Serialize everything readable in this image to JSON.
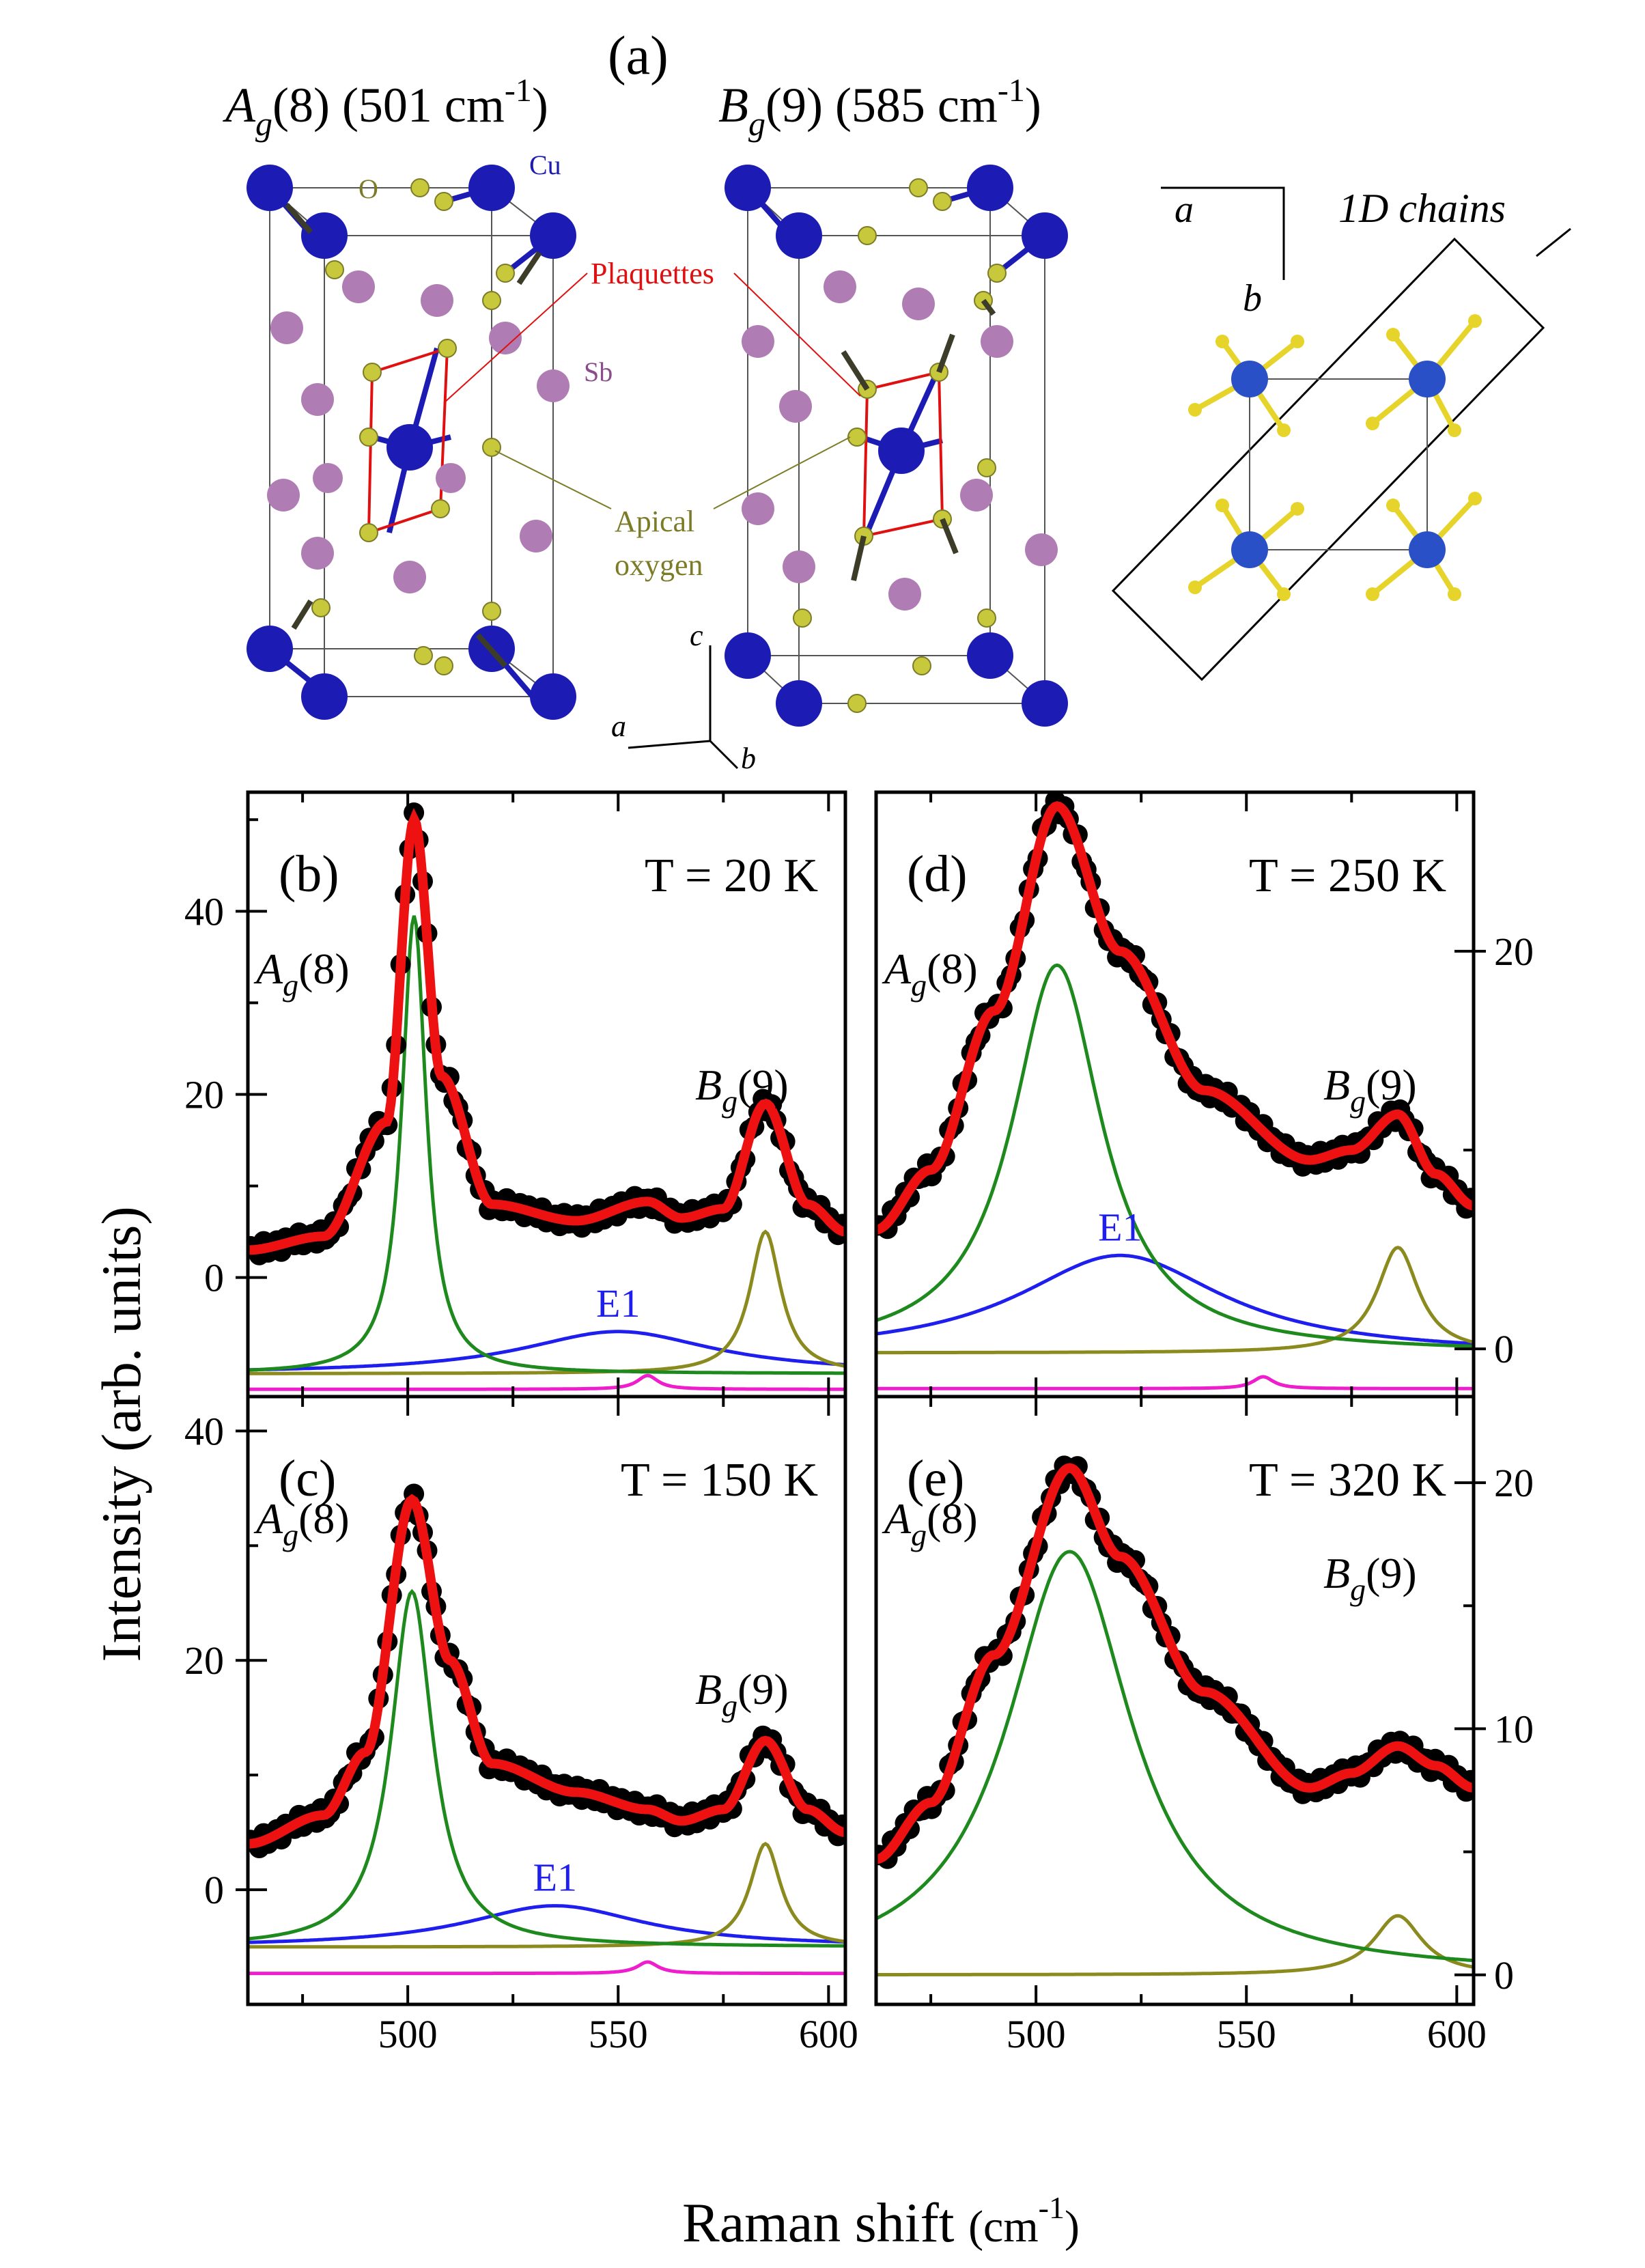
{
  "panel_a": {
    "label": "(a)",
    "mode1": {
      "name": "A",
      "sub": "g",
      "idx": "(8)",
      "freq": " (501 cm",
      "sup": "-1",
      "close": ")"
    },
    "mode2": {
      "name": "B",
      "sub": "g",
      "idx": "(9)",
      "freq": " (585 cm",
      "sup": "-1",
      "close": ")"
    },
    "atoms": {
      "cu": "Cu",
      "o": "O",
      "sb": "Sb"
    },
    "plaquettes": "Plaquettes",
    "apical1": "Apical",
    "apical2": "oxygen",
    "axis_a": "a",
    "axis_b": "b",
    "axis_c": "c",
    "chains": "1D chains",
    "colors": {
      "cu": "#1c1cb4",
      "o": "#c8c83c",
      "sb": "#b07cb4",
      "plaq": "#e01010",
      "apical": "#7c7c28"
    }
  },
  "figure": {
    "ylabel": "Intensity (arb. units)",
    "xlabel_main": "Raman shift ",
    "xlabel_unit": "(cm",
    "xlabel_sup": "-1",
    "xlabel_close": ")"
  },
  "chart_data": [
    {
      "type": "line",
      "panel": "(b)",
      "temperature": "T = 20 K",
      "x_range": [
        462,
        604
      ],
      "y_range": [
        -13,
        53
      ],
      "xticks": [
        "500",
        "550",
        "600"
      ],
      "yticks": [
        "0",
        "20",
        "40"
      ],
      "ytick_values": [
        0,
        20,
        40
      ],
      "labels": {
        "ag": "A",
        "ag_sub": "g",
        "ag_idx": "(8)",
        "bg": "B",
        "bg_sub": "g",
        "bg_idx": "(9)",
        "e1": "E1"
      },
      "colors": {
        "data": "#000000",
        "fit": "#ee1111",
        "ag": "#1e8a1e",
        "bg": "#8a8a1e",
        "e1": "#1e1eee",
        "small": "#ee1ecc"
      },
      "series": [
        {
          "name": "Ag(8)",
          "x0": 501.5,
          "w": 3.5,
          "A": 50,
          "base": -10.5
        },
        {
          "name": "Bg(9)",
          "x0": 585,
          "w": 4.5,
          "A": 15.5,
          "base": -10.5
        },
        {
          "name": "E1",
          "x0": 550,
          "w": 28,
          "A": 4.6,
          "base": -10.5
        },
        {
          "name": "small",
          "x0": 557,
          "w": 3,
          "A": 1.5,
          "base": -12.2
        },
        {
          "name": "fit",
          "x": [
            462,
            480,
            495,
            501.5,
            508,
            520,
            540,
            557,
            565,
            575,
            585,
            595,
            604
          ],
          "y": [
            3,
            4.5,
            17,
            50,
            22,
            8,
            6.2,
            8.3,
            6.5,
            7.5,
            19,
            8,
            5
          ]
        }
      ]
    },
    {
      "type": "line",
      "panel": "(c)",
      "temperature": "T = 150 K",
      "x_range": [
        462,
        604
      ],
      "y_range": [
        -10,
        43
      ],
      "xticks": [
        "500",
        "550",
        "600"
      ],
      "yticks": [
        "0",
        "20",
        "40"
      ],
      "ytick_values": [
        0,
        20,
        40
      ],
      "labels": {
        "ag": "A",
        "ag_sub": "g",
        "ag_idx": "(8)",
        "bg": "B",
        "bg_sub": "g",
        "bg_idx": "(9)",
        "e1": "E1"
      },
      "colors": {
        "data": "#000000",
        "fit": "#ee1111",
        "ag": "#1e8a1e",
        "bg": "#8a8a1e",
        "e1": "#1e1eee",
        "small": "#ee1ecc"
      },
      "series": [
        {
          "name": "Ag(8)",
          "x0": 501,
          "w": 6,
          "A": 31,
          "base": -5
        },
        {
          "name": "Bg(9)",
          "x0": 585,
          "w": 4.5,
          "A": 9,
          "base": -5
        },
        {
          "name": "E1",
          "x0": 535,
          "w": 26,
          "A": 3.6,
          "base": -5
        },
        {
          "name": "small",
          "x0": 557,
          "w": 3,
          "A": 1,
          "base": -7.3
        },
        {
          "name": "fit",
          "x": [
            462,
            480,
            490,
            501,
            510,
            520,
            540,
            557,
            565,
            575,
            585,
            595,
            604
          ],
          "y": [
            4,
            6.5,
            12,
            34,
            20,
            11,
            8.5,
            7,
            6,
            7,
            13,
            7,
            5
          ]
        }
      ]
    },
    {
      "type": "line",
      "panel": "(d)",
      "temperature": "T = 250 K",
      "x_range": [
        462,
        604
      ],
      "y_range": [
        -2.4,
        28
      ],
      "xticks": [
        "500",
        "550",
        "600"
      ],
      "yticks": [
        "0",
        "20"
      ],
      "ytick_values": [
        0,
        20
      ],
      "labels": {
        "ag": "A",
        "ag_sub": "g",
        "ag_idx": "(8)",
        "bg": "B",
        "bg_sub": "g",
        "bg_idx": "(9)",
        "e1": "E1"
      },
      "colors": {
        "data": "#000000",
        "fit": "#ee1111",
        "ag": "#1e8a1e",
        "bg": "#8a8a1e",
        "e1": "#1e1eee",
        "small": "#ee1ecc"
      },
      "series": [
        {
          "name": "Ag(8)",
          "x0": 505,
          "w": 13,
          "A": 19.5,
          "base": -0.2
        },
        {
          "name": "Bg(9)",
          "x0": 586,
          "w": 6,
          "A": 5.3,
          "base": -0.2
        },
        {
          "name": "E1",
          "x0": 520,
          "w": 30,
          "A": 5,
          "base": -0.3
        },
        {
          "name": "small",
          "x0": 554,
          "w": 3,
          "A": 0.6,
          "base": -2
        },
        {
          "name": "fit",
          "x": [
            462,
            475,
            490,
            505,
            520,
            540,
            565,
            575,
            586,
            595,
            604
          ],
          "y": [
            6,
            9,
            17,
            27.3,
            20,
            13,
            9.5,
            10,
            11.8,
            8.8,
            7.2
          ]
        }
      ]
    },
    {
      "type": "line",
      "panel": "(e)",
      "temperature": "T = 320 K",
      "x_range": [
        462,
        604
      ],
      "y_range": [
        -1.2,
        23.5
      ],
      "xticks": [
        "500",
        "550",
        "600"
      ],
      "yticks": [
        "0",
        "10",
        "20"
      ],
      "ytick_values": [
        0,
        10,
        20
      ],
      "labels": {
        "ag": "A",
        "ag_sub": "g",
        "ag_idx": "(8)",
        "bg": "B",
        "bg_sub": "g",
        "bg_idx": "(9)"
      },
      "colors": {
        "data": "#000000",
        "fit": "#ee1111",
        "ag": "#1e8a1e",
        "bg": "#8a8a1e"
      },
      "series": [
        {
          "name": "Ag(8)",
          "x0": 508,
          "w": 18,
          "A": 17.2,
          "base": 0
        },
        {
          "name": "Bg(9)",
          "x0": 586,
          "w": 7,
          "A": 2.4,
          "base": 0
        },
        {
          "name": "fit",
          "x": [
            462,
            475,
            490,
            508,
            520,
            540,
            565,
            575,
            586,
            595,
            604
          ],
          "y": [
            4.7,
            7,
            13,
            20.6,
            17,
            11.5,
            7.6,
            8.2,
            9.3,
            8.5,
            7.6
          ]
        }
      ]
    }
  ]
}
